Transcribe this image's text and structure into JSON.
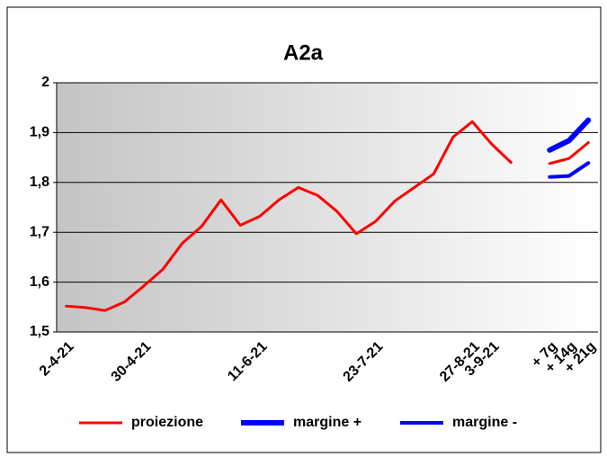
{
  "chart_data": {
    "type": "line",
    "title": "A2a",
    "categories": [
      "2-4-21",
      null,
      null,
      null,
      "30-4-21",
      null,
      null,
      null,
      null,
      null,
      "11-6-21",
      null,
      null,
      null,
      null,
      null,
      "23-7-21",
      null,
      null,
      null,
      null,
      "27-8-21",
      "3-9-21",
      null,
      null,
      "+ 7g",
      "+ 14g",
      "+ 21g"
    ],
    "series": [
      {
        "name": "proiezione",
        "color": "#ff0000",
        "values": [
          1.552,
          1.549,
          1.543,
          1.56,
          1.592,
          1.626,
          1.678,
          1.712,
          1.765,
          1.714,
          1.732,
          1.765,
          1.79,
          1.774,
          1.742,
          1.697,
          1.722,
          1.763,
          1.79,
          1.817,
          1.891,
          1.922,
          1.877,
          1.84,
          null,
          1.838,
          1.848,
          1.88
        ]
      },
      {
        "name": "margine +",
        "color": "#0000ff",
        "values": [
          null,
          null,
          null,
          null,
          null,
          null,
          null,
          null,
          null,
          null,
          null,
          null,
          null,
          null,
          null,
          null,
          null,
          null,
          null,
          null,
          null,
          null,
          null,
          null,
          null,
          1.865,
          1.884,
          1.925
        ]
      },
      {
        "name": "margine -",
        "color": "#0000ff",
        "values": [
          null,
          null,
          null,
          null,
          null,
          null,
          null,
          null,
          null,
          null,
          null,
          null,
          null,
          null,
          null,
          null,
          null,
          null,
          null,
          null,
          null,
          null,
          null,
          null,
          null,
          1.811,
          1.813,
          1.839
        ]
      }
    ],
    "ylim": [
      1.5,
      2
    ],
    "yticks": [
      {
        "value": 1.5,
        "label": "1,5"
      },
      {
        "value": 1.6,
        "label": "1,6"
      },
      {
        "value": 1.7,
        "label": "1,7"
      },
      {
        "value": 1.8,
        "label": "1,8"
      },
      {
        "value": 1.9,
        "label": "1,9"
      },
      2
    ],
    "grid": true,
    "legend": "bottom"
  }
}
